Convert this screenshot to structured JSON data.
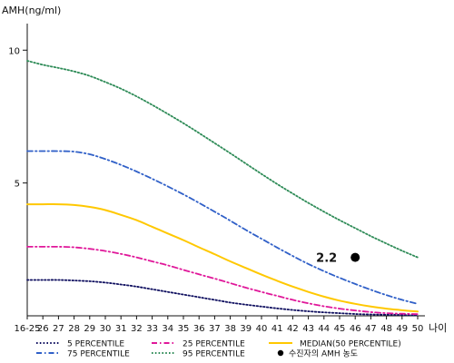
{
  "chart_data": {
    "type": "line",
    "ylabel": "AMH(ng/ml)",
    "xlabel": "나이",
    "ylim": [
      0,
      11
    ],
    "yticks": [
      5,
      10
    ],
    "grid": false,
    "legend_position": "bottom",
    "categories": [
      "16-25",
      "26",
      "27",
      "28",
      "29",
      "30",
      "31",
      "32",
      "33",
      "34",
      "35",
      "36",
      "37",
      "38",
      "39",
      "40",
      "41",
      "42",
      "43",
      "44",
      "45",
      "46",
      "47",
      "48",
      "49",
      "50"
    ],
    "series": [
      {
        "name": "5 PERCENTILE",
        "color": "#101060",
        "dash": "dotted",
        "values": [
          1.35,
          1.35,
          1.35,
          1.33,
          1.3,
          1.25,
          1.18,
          1.1,
          1.0,
          0.9,
          0.8,
          0.7,
          0.6,
          0.5,
          0.42,
          0.35,
          0.28,
          0.22,
          0.17,
          0.13,
          0.1,
          0.07,
          0.05,
          0.04,
          0.03,
          0.02
        ]
      },
      {
        "name": "25 PERCENTILE",
        "color": "#e0189a",
        "dash": "dashdot",
        "values": [
          2.6,
          2.6,
          2.6,
          2.58,
          2.52,
          2.44,
          2.33,
          2.2,
          2.05,
          1.9,
          1.73,
          1.56,
          1.4,
          1.23,
          1.06,
          0.9,
          0.75,
          0.6,
          0.47,
          0.36,
          0.27,
          0.2,
          0.14,
          0.1,
          0.08,
          0.06
        ]
      },
      {
        "name": "MEDIAN(50 PERCENTILE)",
        "color": "#ffc800",
        "dash": "solid",
        "values": [
          4.2,
          4.2,
          4.2,
          4.17,
          4.1,
          3.98,
          3.8,
          3.6,
          3.35,
          3.1,
          2.85,
          2.58,
          2.32,
          2.05,
          1.8,
          1.55,
          1.32,
          1.1,
          0.9,
          0.72,
          0.57,
          0.45,
          0.35,
          0.27,
          0.21,
          0.16
        ]
      },
      {
        "name": "75 PERCENTILE",
        "color": "#3060c8",
        "dash": "dashdot",
        "values": [
          6.2,
          6.2,
          6.2,
          6.18,
          6.08,
          5.9,
          5.68,
          5.43,
          5.16,
          4.87,
          4.57,
          4.25,
          3.92,
          3.58,
          3.23,
          2.9,
          2.57,
          2.25,
          1.95,
          1.68,
          1.43,
          1.2,
          0.98,
          0.78,
          0.6,
          0.45
        ]
      },
      {
        "name": "95 PERCENTILE",
        "color": "#2e8b57",
        "dash": "dotted",
        "values": [
          9.6,
          9.45,
          9.33,
          9.2,
          9.03,
          8.8,
          8.55,
          8.26,
          7.94,
          7.6,
          7.25,
          6.88,
          6.5,
          6.12,
          5.73,
          5.34,
          4.96,
          4.6,
          4.25,
          3.92,
          3.6,
          3.3,
          3.0,
          2.72,
          2.45,
          2.2
        ]
      }
    ],
    "marker": {
      "name": "수진자의 AMH 농도",
      "x": "46",
      "y": 2.2,
      "label": "2.2",
      "color": "#000000"
    }
  }
}
